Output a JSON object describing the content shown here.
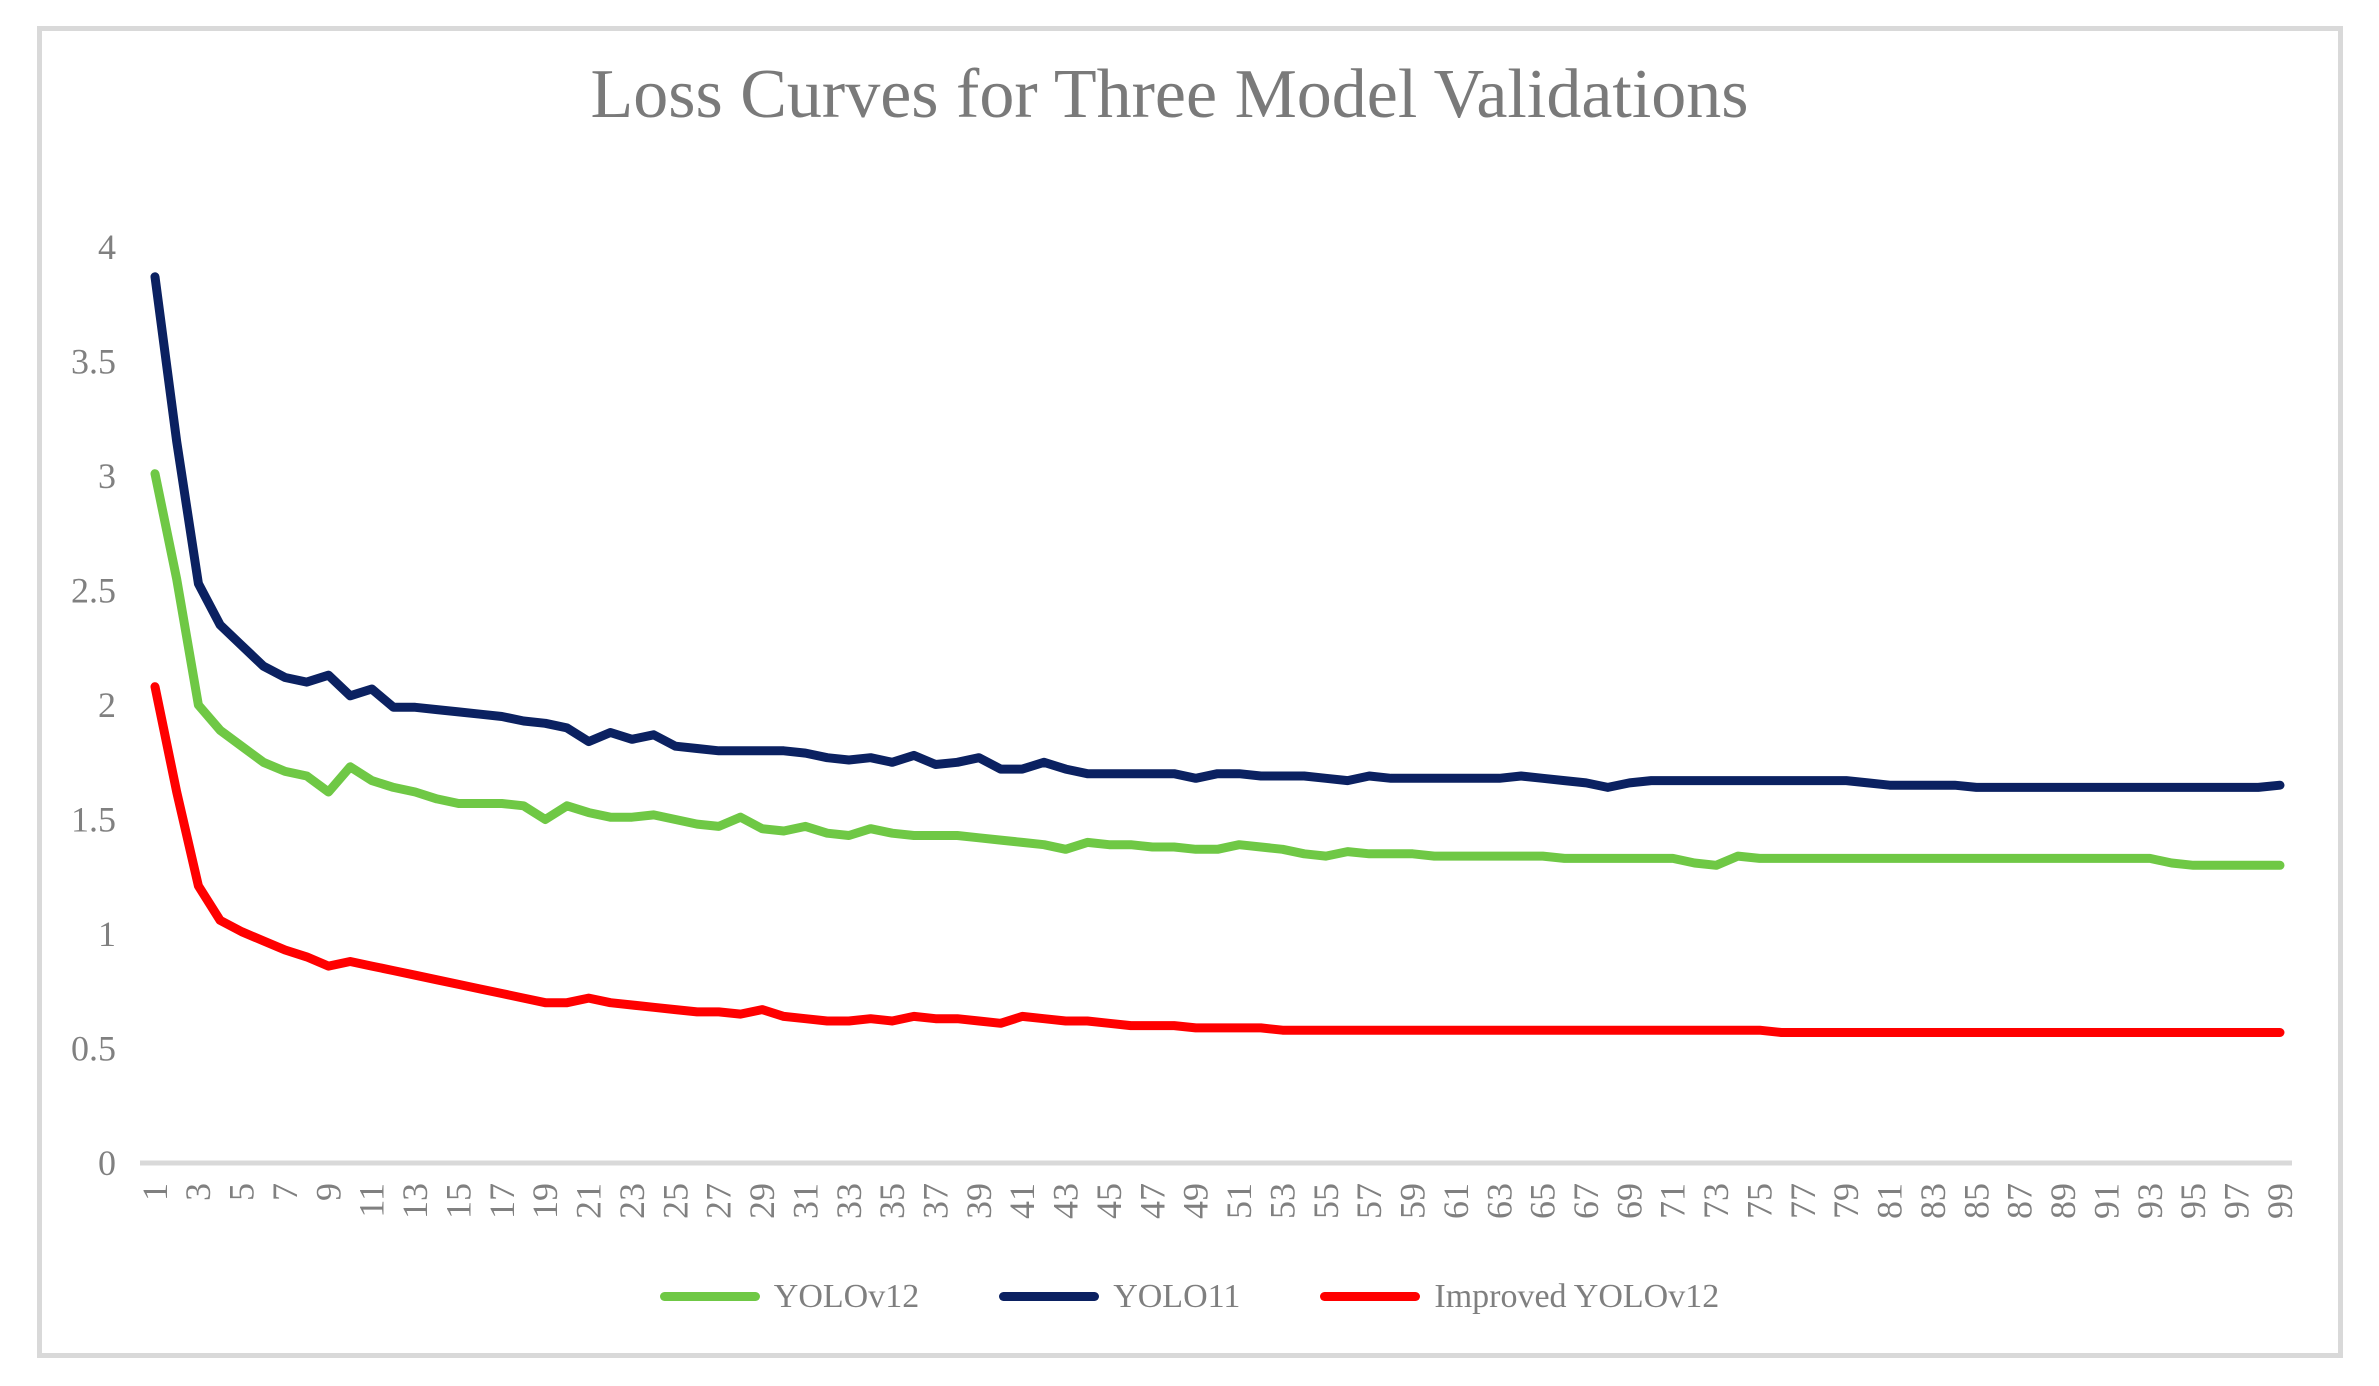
{
  "chart": {
    "title": "Loss Curves for Three Model Validations"
  },
  "colors": {
    "background": "#ffffff",
    "frame": "#d9d9d9",
    "axis_line": "#d9d9d9",
    "tick_text": "#808080",
    "title_text": "#7a7a7a",
    "legend_text": "#7f7f7f"
  },
  "chart_data": {
    "type": "line",
    "title": "Loss Curves for Three Model Validations",
    "xlabel": "",
    "ylabel": "",
    "x": {
      "start": 1,
      "step": 1,
      "count": 99
    },
    "x_tick_labels": [
      "1",
      "3",
      "5",
      "7",
      "9",
      "11",
      "13",
      "15",
      "17",
      "19",
      "21",
      "23",
      "25",
      "27",
      "29",
      "31",
      "33",
      "35",
      "37",
      "39",
      "41",
      "43",
      "45",
      "47",
      "49",
      "51",
      "53",
      "55",
      "57",
      "59",
      "61",
      "63",
      "65",
      "67",
      "69",
      "71",
      "73",
      "75",
      "77",
      "79",
      "81",
      "83",
      "85",
      "87",
      "89",
      "91",
      "93",
      "95",
      "97",
      "99"
    ],
    "y_tick_labels": [
      "0",
      "0.5",
      "1",
      "1.5",
      "2",
      "2.5",
      "3",
      "3.5",
      "4"
    ],
    "ylim": [
      0,
      4
    ],
    "grid": false,
    "legend_position": "bottom",
    "series": [
      {
        "name": "YOLOv12",
        "color": "#6fc845",
        "values": [
          3.01,
          2.55,
          2.0,
          1.89,
          1.82,
          1.75,
          1.71,
          1.69,
          1.62,
          1.73,
          1.67,
          1.64,
          1.62,
          1.59,
          1.57,
          1.57,
          1.57,
          1.56,
          1.5,
          1.56,
          1.53,
          1.51,
          1.51,
          1.52,
          1.5,
          1.48,
          1.47,
          1.51,
          1.46,
          1.45,
          1.47,
          1.44,
          1.43,
          1.46,
          1.44,
          1.43,
          1.43,
          1.43,
          1.42,
          1.41,
          1.4,
          1.39,
          1.37,
          1.4,
          1.39,
          1.39,
          1.38,
          1.38,
          1.37,
          1.37,
          1.39,
          1.38,
          1.37,
          1.35,
          1.34,
          1.36,
          1.35,
          1.35,
          1.35,
          1.34,
          1.34,
          1.34,
          1.34,
          1.34,
          1.34,
          1.33,
          1.33,
          1.33,
          1.33,
          1.33,
          1.33,
          1.31,
          1.3,
          1.34,
          1.33,
          1.33,
          1.33,
          1.33,
          1.33,
          1.33,
          1.33,
          1.33,
          1.33,
          1.33,
          1.33,
          1.33,
          1.33,
          1.33,
          1.33,
          1.33,
          1.33,
          1.33,
          1.33,
          1.31,
          1.3,
          1.3,
          1.3,
          1.3,
          1.3
        ]
      },
      {
        "name": "YOLO11",
        "color": "#0b2161",
        "values": [
          3.87,
          3.15,
          2.53,
          2.35,
          2.26,
          2.17,
          2.12,
          2.1,
          2.13,
          2.04,
          2.07,
          1.99,
          1.99,
          1.98,
          1.97,
          1.96,
          1.95,
          1.93,
          1.92,
          1.9,
          1.84,
          1.88,
          1.85,
          1.87,
          1.82,
          1.81,
          1.8,
          1.8,
          1.8,
          1.8,
          1.79,
          1.77,
          1.76,
          1.77,
          1.75,
          1.78,
          1.74,
          1.75,
          1.77,
          1.72,
          1.72,
          1.75,
          1.72,
          1.7,
          1.7,
          1.7,
          1.7,
          1.7,
          1.68,
          1.7,
          1.7,
          1.69,
          1.69,
          1.69,
          1.68,
          1.67,
          1.69,
          1.68,
          1.68,
          1.68,
          1.68,
          1.68,
          1.68,
          1.69,
          1.68,
          1.67,
          1.66,
          1.64,
          1.66,
          1.67,
          1.67,
          1.67,
          1.67,
          1.67,
          1.67,
          1.67,
          1.67,
          1.67,
          1.67,
          1.66,
          1.65,
          1.65,
          1.65,
          1.65,
          1.64,
          1.64,
          1.64,
          1.64,
          1.64,
          1.64,
          1.64,
          1.64,
          1.64,
          1.64,
          1.64,
          1.64,
          1.64,
          1.64,
          1.65
        ]
      },
      {
        "name": "Improved YOLOv12",
        "color": "#ff0000",
        "values": [
          2.08,
          1.62,
          1.21,
          1.06,
          1.01,
          0.97,
          0.93,
          0.9,
          0.86,
          0.88,
          0.86,
          0.84,
          0.82,
          0.8,
          0.78,
          0.76,
          0.74,
          0.72,
          0.7,
          0.7,
          0.72,
          0.7,
          0.69,
          0.68,
          0.67,
          0.66,
          0.66,
          0.65,
          0.67,
          0.64,
          0.63,
          0.62,
          0.62,
          0.63,
          0.62,
          0.64,
          0.63,
          0.63,
          0.62,
          0.61,
          0.64,
          0.63,
          0.62,
          0.62,
          0.61,
          0.6,
          0.6,
          0.6,
          0.59,
          0.59,
          0.59,
          0.59,
          0.58,
          0.58,
          0.58,
          0.58,
          0.58,
          0.58,
          0.58,
          0.58,
          0.58,
          0.58,
          0.58,
          0.58,
          0.58,
          0.58,
          0.58,
          0.58,
          0.58,
          0.58,
          0.58,
          0.58,
          0.58,
          0.58,
          0.58,
          0.57,
          0.57,
          0.57,
          0.57,
          0.57,
          0.57,
          0.57,
          0.57,
          0.57,
          0.57,
          0.57,
          0.57,
          0.57,
          0.57,
          0.57,
          0.57,
          0.57,
          0.57,
          0.57,
          0.57,
          0.57,
          0.57,
          0.57,
          0.57
        ]
      }
    ]
  }
}
